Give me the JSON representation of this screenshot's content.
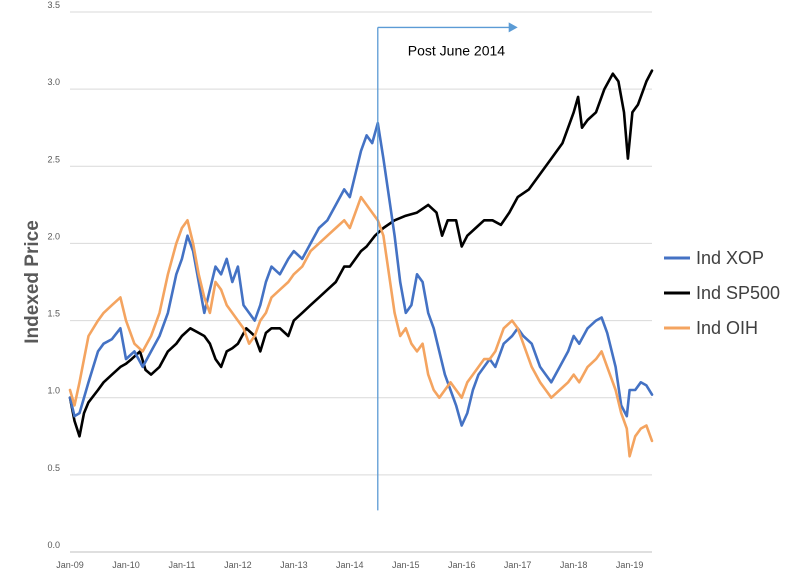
{
  "chart_data": {
    "type": "line",
    "title": "",
    "xlabel": "",
    "ylabel": "Indexed Price",
    "ylim": [
      0.0,
      3.5
    ],
    "yticks": [
      "0.0",
      "0.5",
      "1.0",
      "1.5",
      "2.0",
      "2.5",
      "3.0",
      "3.5"
    ],
    "xlim": [
      2009.0,
      2019.4
    ],
    "xticks": [
      "Jan-09",
      "Jan-10",
      "Jan-11",
      "Jan-12",
      "Jan-13",
      "Jan-14",
      "Jan-15",
      "Jan-16",
      "Jan-17",
      "Jan-18",
      "Jan-19"
    ],
    "grid": "horizontal",
    "legend_position": "right",
    "annotation": {
      "text": "Post June 2014",
      "x": 2014.5,
      "y_bottom": 0.27,
      "y_top": 3.4,
      "arrow_to_x": 2017.0
    },
    "series": [
      {
        "name": "Ind XOP",
        "color": "#4472C4",
        "x": [
          2009.0,
          2009.08,
          2009.17,
          2009.25,
          2009.33,
          2009.5,
          2009.6,
          2009.75,
          2009.9,
          2010.0,
          2010.15,
          2010.3,
          2010.45,
          2010.6,
          2010.75,
          2010.9,
          2011.0,
          2011.1,
          2011.2,
          2011.3,
          2011.4,
          2011.5,
          2011.6,
          2011.7,
          2011.8,
          2011.9,
          2012.0,
          2012.1,
          2012.2,
          2012.3,
          2012.4,
          2012.5,
          2012.6,
          2012.75,
          2012.9,
          2013.0,
          2013.15,
          2013.3,
          2013.45,
          2013.6,
          2013.75,
          2013.9,
          2014.0,
          2014.1,
          2014.2,
          2014.3,
          2014.4,
          2014.5,
          2014.6,
          2014.7,
          2014.8,
          2014.9,
          2015.0,
          2015.1,
          2015.2,
          2015.3,
          2015.4,
          2015.5,
          2015.6,
          2015.7,
          2015.8,
          2015.9,
          2016.0,
          2016.1,
          2016.2,
          2016.3,
          2016.4,
          2016.5,
          2016.6,
          2016.75,
          2016.9,
          2017.0,
          2017.1,
          2017.25,
          2017.4,
          2017.5,
          2017.6,
          2017.75,
          2017.9,
          2018.0,
          2018.1,
          2018.25,
          2018.4,
          2018.5,
          2018.6,
          2018.75,
          2018.85,
          2018.95,
          2019.0,
          2019.1,
          2019.2,
          2019.3,
          2019.4
        ],
        "values": [
          1.0,
          0.88,
          0.9,
          1.0,
          1.1,
          1.3,
          1.35,
          1.38,
          1.45,
          1.25,
          1.3,
          1.2,
          1.3,
          1.4,
          1.55,
          1.8,
          1.9,
          2.05,
          1.95,
          1.75,
          1.55,
          1.7,
          1.85,
          1.8,
          1.9,
          1.75,
          1.85,
          1.6,
          1.55,
          1.5,
          1.6,
          1.75,
          1.85,
          1.8,
          1.9,
          1.95,
          1.9,
          2.0,
          2.1,
          2.15,
          2.25,
          2.35,
          2.3,
          2.45,
          2.6,
          2.7,
          2.65,
          2.78,
          2.55,
          2.3,
          2.05,
          1.75,
          1.55,
          1.6,
          1.8,
          1.75,
          1.55,
          1.45,
          1.3,
          1.15,
          1.05,
          0.95,
          0.82,
          0.9,
          1.05,
          1.15,
          1.2,
          1.25,
          1.2,
          1.35,
          1.4,
          1.45,
          1.4,
          1.35,
          1.2,
          1.15,
          1.1,
          1.2,
          1.3,
          1.4,
          1.35,
          1.45,
          1.5,
          1.52,
          1.42,
          1.2,
          0.95,
          0.88,
          1.05,
          1.05,
          1.1,
          1.08,
          1.02
        ]
      },
      {
        "name": "Ind SP500",
        "color": "#000000",
        "x": [
          2009.0,
          2009.08,
          2009.17,
          2009.25,
          2009.33,
          2009.5,
          2009.6,
          2009.75,
          2009.9,
          2010.0,
          2010.1,
          2010.25,
          2010.35,
          2010.45,
          2010.6,
          2010.75,
          2010.9,
          2011.0,
          2011.15,
          2011.3,
          2011.4,
          2011.5,
          2011.6,
          2011.7,
          2011.8,
          2011.9,
          2012.0,
          2012.15,
          2012.3,
          2012.4,
          2012.5,
          2012.6,
          2012.75,
          2012.9,
          2013.0,
          2013.15,
          2013.3,
          2013.45,
          2013.6,
          2013.75,
          2013.9,
          2014.0,
          2014.1,
          2014.2,
          2014.3,
          2014.45,
          2014.6,
          2014.8,
          2015.0,
          2015.2,
          2015.4,
          2015.55,
          2015.65,
          2015.75,
          2015.9,
          2016.0,
          2016.1,
          2016.25,
          2016.4,
          2016.55,
          2016.7,
          2016.85,
          2017.0,
          2017.2,
          2017.4,
          2017.6,
          2017.8,
          2018.0,
          2018.08,
          2018.15,
          2018.25,
          2018.4,
          2018.55,
          2018.7,
          2018.8,
          2018.9,
          2018.97,
          2019.05,
          2019.15,
          2019.3,
          2019.4
        ],
        "values": [
          1.0,
          0.85,
          0.75,
          0.9,
          0.97,
          1.05,
          1.1,
          1.15,
          1.2,
          1.22,
          1.25,
          1.3,
          1.18,
          1.15,
          1.2,
          1.3,
          1.35,
          1.4,
          1.45,
          1.42,
          1.4,
          1.35,
          1.25,
          1.2,
          1.3,
          1.32,
          1.35,
          1.45,
          1.4,
          1.3,
          1.42,
          1.45,
          1.45,
          1.4,
          1.5,
          1.55,
          1.6,
          1.65,
          1.7,
          1.75,
          1.85,
          1.85,
          1.9,
          1.95,
          1.98,
          2.05,
          2.1,
          2.15,
          2.18,
          2.2,
          2.25,
          2.2,
          2.05,
          2.15,
          2.15,
          1.98,
          2.05,
          2.1,
          2.15,
          2.15,
          2.12,
          2.2,
          2.3,
          2.35,
          2.45,
          2.55,
          2.65,
          2.85,
          2.95,
          2.75,
          2.8,
          2.85,
          3.0,
          3.1,
          3.05,
          2.85,
          2.55,
          2.85,
          2.9,
          3.05,
          3.12
        ]
      },
      {
        "name": "Ind OIH",
        "color": "#F4A460",
        "x": [
          2009.0,
          2009.08,
          2009.17,
          2009.25,
          2009.33,
          2009.5,
          2009.6,
          2009.75,
          2009.9,
          2010.0,
          2010.15,
          2010.3,
          2010.45,
          2010.6,
          2010.75,
          2010.9,
          2011.0,
          2011.1,
          2011.2,
          2011.3,
          2011.4,
          2011.5,
          2011.6,
          2011.7,
          2011.8,
          2011.9,
          2012.0,
          2012.1,
          2012.2,
          2012.3,
          2012.4,
          2012.5,
          2012.6,
          2012.75,
          2012.9,
          2013.0,
          2013.15,
          2013.3,
          2013.45,
          2013.6,
          2013.75,
          2013.9,
          2014.0,
          2014.1,
          2014.2,
          2014.3,
          2014.4,
          2014.5,
          2014.6,
          2014.7,
          2014.8,
          2014.9,
          2015.0,
          2015.1,
          2015.2,
          2015.3,
          2015.4,
          2015.5,
          2015.6,
          2015.7,
          2015.8,
          2015.9,
          2016.0,
          2016.1,
          2016.2,
          2016.3,
          2016.4,
          2016.5,
          2016.6,
          2016.75,
          2016.9,
          2017.0,
          2017.1,
          2017.25,
          2017.4,
          2017.5,
          2017.6,
          2017.75,
          2017.9,
          2018.0,
          2018.1,
          2018.25,
          2018.4,
          2018.5,
          2018.6,
          2018.75,
          2018.85,
          2018.95,
          2019.0,
          2019.1,
          2019.2,
          2019.3,
          2019.4
        ],
        "values": [
          1.05,
          0.95,
          1.1,
          1.25,
          1.4,
          1.5,
          1.55,
          1.6,
          1.65,
          1.5,
          1.35,
          1.3,
          1.4,
          1.55,
          1.8,
          2.0,
          2.1,
          2.15,
          2.0,
          1.8,
          1.65,
          1.55,
          1.75,
          1.7,
          1.6,
          1.55,
          1.5,
          1.45,
          1.35,
          1.4,
          1.5,
          1.55,
          1.65,
          1.7,
          1.75,
          1.8,
          1.85,
          1.95,
          2.0,
          2.05,
          2.1,
          2.15,
          2.1,
          2.2,
          2.3,
          2.25,
          2.2,
          2.15,
          2.05,
          1.8,
          1.55,
          1.4,
          1.45,
          1.35,
          1.3,
          1.35,
          1.15,
          1.05,
          1.0,
          1.05,
          1.1,
          1.05,
          1.0,
          1.1,
          1.15,
          1.2,
          1.25,
          1.25,
          1.3,
          1.45,
          1.5,
          1.45,
          1.35,
          1.2,
          1.1,
          1.05,
          1.0,
          1.05,
          1.1,
          1.15,
          1.1,
          1.2,
          1.25,
          1.3,
          1.2,
          1.05,
          0.9,
          0.8,
          0.62,
          0.75,
          0.8,
          0.82,
          0.72
        ]
      }
    ]
  }
}
